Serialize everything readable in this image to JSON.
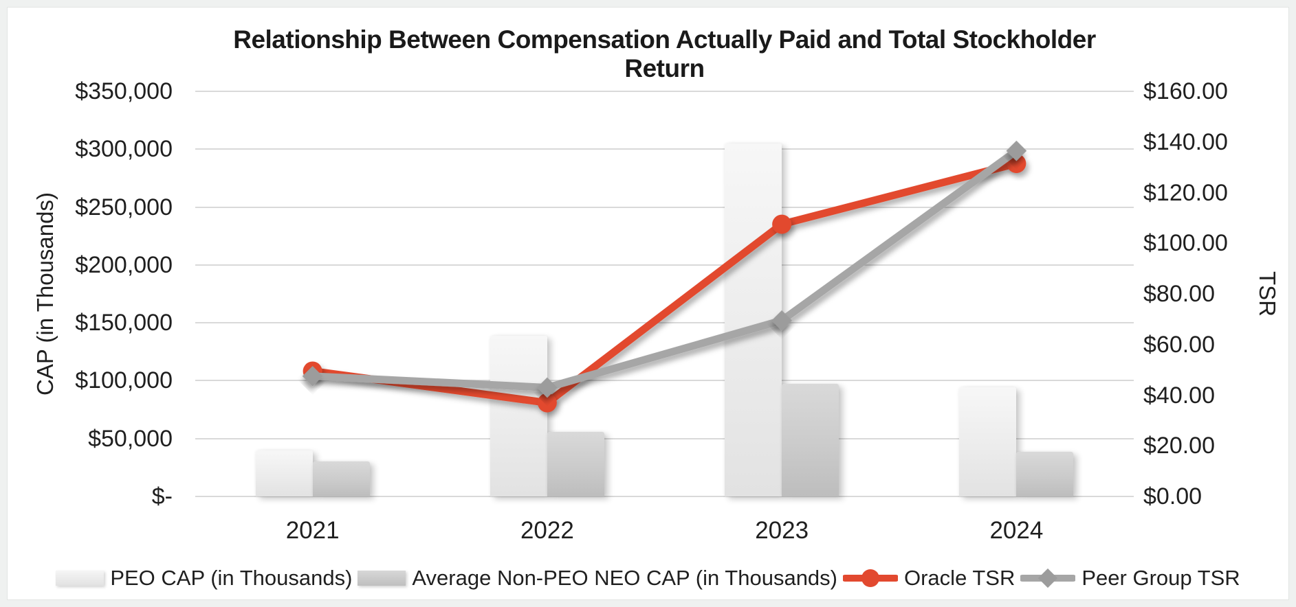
{
  "chart_data": {
    "type": "combo: bar + line, dual axis",
    "title": "Relationship Between Compensation Actually Paid and Total Stockholder Return",
    "categories": [
      "2021",
      "2022",
      "2023",
      "2024"
    ],
    "series": [
      {
        "name": "PEO CAP (in Thousands)",
        "type": "bar",
        "axis": "left",
        "values": [
          40000,
          139000,
          305000,
          94500
        ]
      },
      {
        "name": "Average Non-PEO NEO CAP (in Thousands)",
        "type": "bar",
        "axis": "left",
        "values": [
          30500,
          56000,
          97500,
          38500
        ]
      },
      {
        "name": "Oracle TSR",
        "type": "line",
        "axis": "right",
        "marker": "circle",
        "values": [
          49.5,
          37,
          107.5,
          131.5
        ]
      },
      {
        "name": "Peer Group TSR",
        "type": "line",
        "axis": "right",
        "marker": "diamond",
        "values": [
          47.5,
          43,
          69.5,
          136.5
        ]
      }
    ],
    "left_axis": {
      "label": "CAP (in Thousands)",
      "range": [
        0,
        350000
      ],
      "tick_step": 50000,
      "tick_labels": [
        "$350,000",
        "$300,000",
        "$250,000",
        "$200,000",
        "$150,000",
        "$100,000",
        "$50,000",
        "$-"
      ]
    },
    "right_axis": {
      "label": "TSR",
      "range": [
        0,
        160
      ],
      "tick_step": 20,
      "tick_labels": [
        "$160.00",
        "$140.00",
        "$120.00",
        "$100.00",
        "$80.00",
        "$60.00",
        "$40.00",
        "$20.00",
        "$0.00"
      ]
    },
    "grid": "horizontal gridlines at left-axis ticks",
    "legend_position": "bottom"
  },
  "colors": {
    "oracle_red": "#e2492f",
    "peer_gray": "#a6a6a6",
    "peer_gray_marker": "#9c9c9c",
    "peo_bar": "#ececec",
    "nonpeo_bar": "#c9c9c9",
    "gridline": "#d9d9d9",
    "text": "#1f1f1f",
    "background": "#ffffff"
  }
}
